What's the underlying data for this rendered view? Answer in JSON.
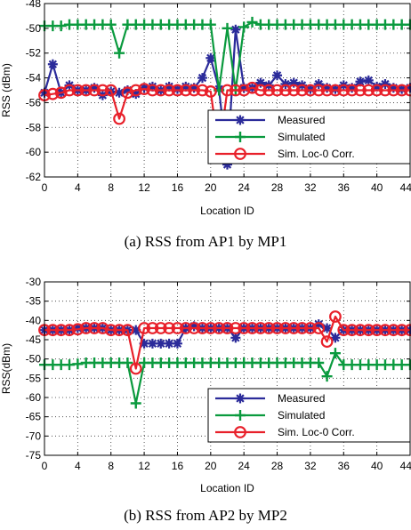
{
  "captions": [
    "(a) RSS from AP1 by MP1",
    "(b) RSS from AP2 by MP2"
  ],
  "colors": {
    "measured": "#2b2b9a",
    "simulated": "#0a9a3e",
    "corrected": "#e8202a"
  },
  "chart_data": [
    {
      "type": "line",
      "title": "",
      "xlabel": "Location ID",
      "ylabel": "RSS (dBm)",
      "xlim": [
        0,
        44
      ],
      "ylim": [
        -62,
        -48
      ],
      "xticks": [
        0,
        4,
        8,
        12,
        16,
        20,
        24,
        28,
        32,
        36,
        40,
        44
      ],
      "yticks": [
        -62,
        -60,
        -58,
        -56,
        -54,
        -52,
        -50,
        -48
      ],
      "grid": true,
      "legend_position": "bottom-right",
      "x": [
        0,
        1,
        2,
        3,
        4,
        5,
        6,
        7,
        8,
        9,
        10,
        11,
        12,
        13,
        14,
        15,
        16,
        17,
        18,
        19,
        20,
        21,
        22,
        23,
        24,
        25,
        26,
        27,
        28,
        29,
        30,
        31,
        32,
        33,
        34,
        35,
        36,
        37,
        38,
        39,
        40,
        41,
        42,
        43,
        44
      ],
      "series": [
        {
          "name": "Measured",
          "marker": "asterisk",
          "values": [
            -55.2,
            -52.9,
            -55.2,
            -54.6,
            -55.0,
            -55.0,
            -54.8,
            -55.4,
            -55.1,
            -55.2,
            -55.0,
            -55.3,
            -54.8,
            -54.7,
            -55.0,
            -54.7,
            -54.9,
            -54.7,
            -54.8,
            -54.0,
            -52.4,
            -54.9,
            -61.0,
            -50.1,
            -54.8,
            -54.8,
            -54.4,
            -54.6,
            -53.8,
            -54.5,
            -54.4,
            -54.6,
            -54.9,
            -54.5,
            -54.8,
            -54.9,
            -54.6,
            -54.8,
            -54.3,
            -54.2,
            -54.7,
            -54.5,
            -54.8,
            -54.9,
            -54.8
          ]
        },
        {
          "name": "Simulated",
          "marker": "plus",
          "values": [
            -49.8,
            -49.8,
            -49.8,
            -49.7,
            -49.7,
            -49.7,
            -49.7,
            -49.7,
            -49.7,
            -52.0,
            -49.7,
            -49.7,
            -49.7,
            -49.7,
            -49.7,
            -49.7,
            -49.7,
            -49.7,
            -49.7,
            -49.7,
            -49.7,
            -55.0,
            -50.0,
            -55.0,
            -49.9,
            -49.5,
            -49.7,
            -49.7,
            -49.7,
            -49.7,
            -49.7,
            -49.7,
            -49.7,
            -49.7,
            -49.7,
            -49.7,
            -49.7,
            -49.7,
            -49.7,
            -49.7,
            -49.7,
            -49.7,
            -49.7,
            -49.7,
            -49.7
          ]
        },
        {
          "name": "Sim. Loc-0 Corr.",
          "marker": "circle",
          "values": [
            -55.4,
            -55.3,
            -55.2,
            -55.0,
            -55.0,
            -55.0,
            -55.0,
            -55.0,
            -55.0,
            -57.3,
            -55.2,
            -55.0,
            -54.9,
            -55.0,
            -55.0,
            -55.0,
            -55.0,
            -55.0,
            -55.0,
            -55.0,
            -55.1,
            -60.0,
            -55.0,
            -55.0,
            -55.0,
            -54.8,
            -55.0,
            -55.0,
            -55.0,
            -55.0,
            -55.0,
            -55.0,
            -55.0,
            -55.0,
            -55.0,
            -55.0,
            -55.0,
            -55.0,
            -55.0,
            -55.0,
            -55.0,
            -55.0,
            -55.0,
            -55.0,
            -55.0
          ]
        }
      ]
    },
    {
      "type": "line",
      "title": "",
      "xlabel": "Location ID",
      "ylabel": "RSS(dBm)",
      "xlim": [
        0,
        44
      ],
      "ylim": [
        -75,
        -30
      ],
      "xticks": [
        0,
        4,
        8,
        12,
        16,
        20,
        24,
        28,
        32,
        36,
        40,
        44
      ],
      "yticks": [
        -75,
        -70,
        -65,
        -60,
        -55,
        -50,
        -45,
        -40,
        -35,
        -30
      ],
      "grid": true,
      "legend_position": "bottom-right",
      "x": [
        0,
        1,
        2,
        3,
        4,
        5,
        6,
        7,
        8,
        9,
        10,
        11,
        12,
        13,
        14,
        15,
        16,
        17,
        18,
        19,
        20,
        21,
        22,
        23,
        24,
        25,
        26,
        27,
        28,
        29,
        30,
        31,
        32,
        33,
        34,
        35,
        36,
        37,
        38,
        39,
        40,
        41,
        42,
        43,
        44
      ],
      "series": [
        {
          "name": "Measured",
          "marker": "asterisk",
          "values": [
            -42.5,
            -42.5,
            -42.5,
            -42.5,
            -42.0,
            -42.0,
            -42.0,
            -42.0,
            -42.5,
            -42.5,
            -42.5,
            -42.5,
            -46.0,
            -46.0,
            -46.0,
            -46.0,
            -46.0,
            -42.0,
            -41.5,
            -42.0,
            -42.0,
            -42.0,
            -42.0,
            -44.5,
            -42.0,
            -42.0,
            -42.0,
            -42.0,
            -42.0,
            -42.0,
            -42.0,
            -42.0,
            -42.0,
            -41.0,
            -42.0,
            -44.5,
            -42.5,
            -42.5,
            -42.5,
            -42.5,
            -42.5,
            -42.5,
            -42.5,
            -42.5,
            -42.5
          ]
        },
        {
          "name": "Simulated",
          "marker": "plus",
          "values": [
            -51.5,
            -51.5,
            -51.5,
            -51.5,
            -51.3,
            -51.0,
            -51.0,
            -51.0,
            -51.0,
            -51.0,
            -51.0,
            -61.5,
            -51.0,
            -51.0,
            -51.0,
            -51.0,
            -51.0,
            -51.0,
            -51.0,
            -51.0,
            -51.0,
            -51.0,
            -51.0,
            -51.0,
            -51.0,
            -51.0,
            -51.0,
            -51.0,
            -51.0,
            -51.0,
            -51.0,
            -51.0,
            -51.0,
            -51.0,
            -54.5,
            -48.5,
            -51.5,
            -51.5,
            -51.5,
            -51.5,
            -51.5,
            -51.5,
            -51.5,
            -51.5,
            -51.5
          ]
        },
        {
          "name": "Sim. Loc-0 Corr.",
          "marker": "circle",
          "values": [
            -42.5,
            -42.5,
            -42.5,
            -42.5,
            -42.3,
            -42.0,
            -42.0,
            -42.0,
            -42.5,
            -42.5,
            -42.5,
            -52.5,
            -42.0,
            -42.0,
            -42.0,
            -42.0,
            -42.0,
            -42.0,
            -42.0,
            -42.0,
            -42.0,
            -42.0,
            -42.0,
            -42.0,
            -42.0,
            -42.0,
            -42.0,
            -42.0,
            -42.0,
            -42.0,
            -42.0,
            -42.0,
            -42.0,
            -42.0,
            -45.5,
            -39.0,
            -42.5,
            -42.5,
            -42.5,
            -42.5,
            -42.5,
            -42.5,
            -42.5,
            -42.5,
            -42.5
          ]
        }
      ]
    }
  ]
}
